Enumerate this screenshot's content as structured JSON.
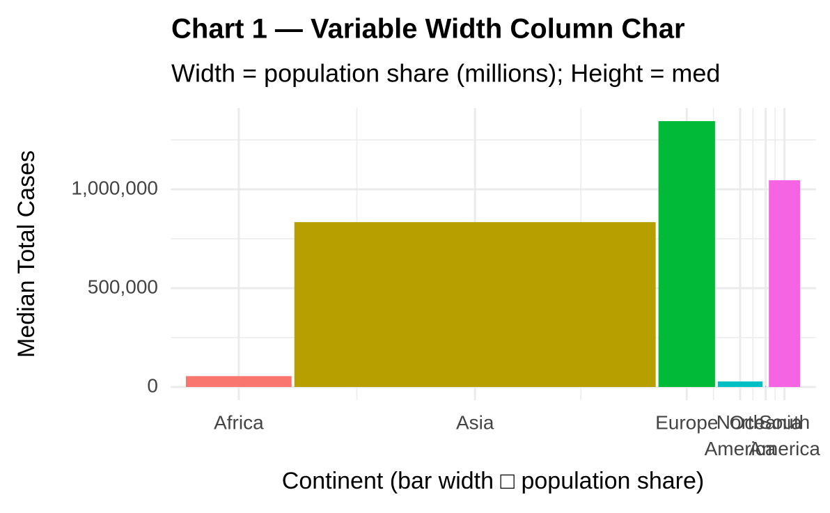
{
  "chart_data": {
    "type": "variable-width-bar",
    "title": "Chart 1 — Variable Width Column Char",
    "subtitle": "Width = population share (millions); Height = med",
    "x_label": "Continent (bar width □ population share)",
    "y_label": "Median Total Cases",
    "categories": [
      "Africa",
      "Asia",
      "Europe",
      "North America",
      "Oceania",
      "South America"
    ],
    "values": [
      55000,
      834000,
      1345000,
      28000,
      5000,
      1046000
    ],
    "widths": [
      1370,
      4600,
      750,
      600,
      45,
      430
    ],
    "colors": [
      "#F8766D",
      "#B79F00",
      "#00BA38",
      "#00BFC4",
      "#619CFF",
      "#F564E3"
    ],
    "xlim": [
      -176,
      7979
    ],
    "ylim": [
      -67000,
      1412000
    ],
    "yticks": [
      0,
      {
        "value": 500000,
        "label": "500,000"
      },
      {
        "value": 1000000,
        "label": "1,000,000"
      }
    ],
    "grid": true
  }
}
